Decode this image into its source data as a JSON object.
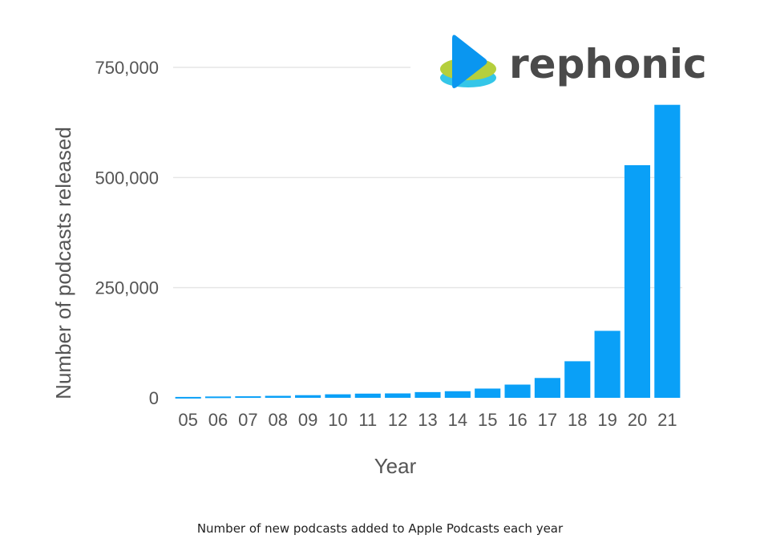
{
  "chart_data": {
    "type": "bar",
    "categories": [
      "05",
      "06",
      "07",
      "08",
      "09",
      "10",
      "11",
      "12",
      "13",
      "14",
      "15",
      "16",
      "17",
      "18",
      "19",
      "20",
      "21"
    ],
    "values": [
      2000,
      3000,
      3500,
      4500,
      6000,
      8000,
      9500,
      10000,
      13000,
      15000,
      21000,
      30000,
      45000,
      83000,
      152000,
      528000,
      665000
    ],
    "title": "",
    "xlabel": "Year",
    "ylabel": "Number of podcasts released",
    "ylim": [
      0,
      750000
    ],
    "yticks": [
      0,
      250000,
      500000,
      750000
    ],
    "ytick_labels": [
      "0",
      "250,000",
      "500,000",
      "750,000"
    ],
    "grid": true,
    "bar_color": "#0aa0f7"
  },
  "logo": {
    "text": "rephonic",
    "colors": {
      "play": "#0a96f0",
      "green": "#b5cf3c",
      "cyan": "#34c6e8"
    }
  },
  "caption": "Number of new podcasts added to Apple Podcasts each year"
}
